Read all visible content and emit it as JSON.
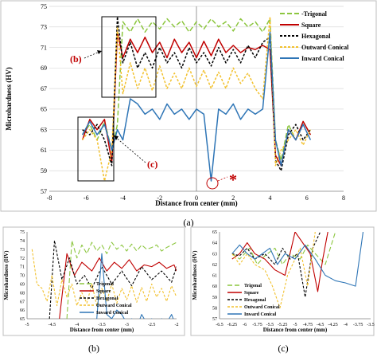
{
  "figure": {
    "panel_labels": [
      "(a)",
      "(b)",
      "(c)"
    ],
    "callouts": {
      "b": "(b)",
      "c": "(c)",
      "star": "*"
    }
  },
  "series_styles": [
    {
      "name": "Trigonal",
      "color": "#8cc63f",
      "dash": "long"
    },
    {
      "name": "Square",
      "color": "#c00000",
      "dash": "solid"
    },
    {
      "name": "Hexagonal",
      "color": "#000000",
      "dash": "short"
    },
    {
      "name": "Outward Conical",
      "color": "#f2c12e",
      "dash": "short"
    },
    {
      "name": "Inward Conical",
      "color": "#2e75b6",
      "dash": "solid"
    }
  ],
  "chart_data": [
    {
      "id": "a",
      "type": "line",
      "xlabel": "Distance from center (mm)",
      "ylabel": "Microhardness (HV)",
      "xlim": [
        -8,
        8
      ],
      "ylim": [
        57,
        75
      ],
      "xticks": [
        -8,
        -6,
        -4,
        -2,
        0,
        2,
        4,
        6,
        8
      ],
      "yticks": [
        57,
        59,
        61,
        63,
        65,
        67,
        69,
        71,
        73,
        75
      ],
      "grid": "horizontal",
      "legend": "top-right",
      "legend_labels": [
        "-Trigonal",
        "Square",
        "Hexagonal",
        "Outward Conical",
        "Inward Conical"
      ],
      "series": [
        {
          "name": "Trigonal",
          "x": [
            -6.2,
            -5.8,
            -5.4,
            -5.0,
            -4.6,
            -4.3,
            -4.0,
            -3.6,
            -3.2,
            -2.8,
            -2.4,
            -2.0,
            -1.6,
            -1.2,
            -0.8,
            -0.4,
            0.0,
            0.4,
            0.8,
            1.2,
            1.6,
            2.0,
            2.4,
            2.8,
            3.2,
            3.6,
            4.0,
            4.3,
            4.6,
            5.0,
            5.4,
            5.8,
            6.2
          ],
          "y": [
            62.5,
            63.5,
            62.0,
            63.8,
            61.0,
            63.5,
            73.5,
            72.5,
            73.8,
            72.5,
            73.5,
            72.8,
            73.8,
            73.0,
            73.6,
            72.5,
            73.5,
            72.8,
            73.8,
            73.0,
            73.5,
            72.6,
            73.8,
            73.0,
            73.5,
            72.5,
            73.8,
            62.0,
            60.0,
            63.5,
            62.0,
            63.8,
            62.5
          ]
        },
        {
          "name": "Square",
          "x": [
            -6.2,
            -5.8,
            -5.4,
            -5.0,
            -4.6,
            -4.3,
            -4.0,
            -3.6,
            -3.2,
            -2.8,
            -2.4,
            -2.0,
            -1.6,
            -1.2,
            -0.8,
            -0.4,
            0.0,
            0.4,
            0.8,
            1.2,
            1.6,
            2.0,
            2.4,
            2.8,
            3.2,
            3.6,
            4.0,
            4.3,
            4.6,
            5.0,
            5.4,
            5.8,
            6.2
          ],
          "y": [
            62.0,
            64.0,
            63.0,
            64.0,
            59.8,
            72.5,
            70.0,
            71.8,
            70.5,
            72.0,
            70.5,
            71.5,
            70.0,
            71.8,
            70.5,
            71.5,
            70.0,
            71.6,
            70.2,
            71.8,
            70.5,
            71.2,
            70.5,
            71.0,
            70.8,
            71.2,
            70.8,
            60.5,
            59.5,
            63.0,
            62.0,
            63.8,
            62.5
          ]
        },
        {
          "name": "Hexagonal",
          "x": [
            -6.2,
            -5.8,
            -5.4,
            -5.0,
            -4.6,
            -4.3,
            -4.0,
            -3.6,
            -3.2,
            -2.8,
            -2.4,
            -2.0,
            -1.6,
            -1.2,
            -0.8,
            -0.4,
            0.0,
            0.4,
            0.8,
            1.2,
            1.6,
            2.0,
            2.4,
            2.8,
            3.2,
            3.6,
            4.0,
            4.3,
            4.6,
            5.0,
            5.4,
            5.8,
            6.2
          ],
          "y": [
            63.0,
            62.5,
            63.5,
            62.0,
            59.5,
            74.0,
            69.5,
            71.5,
            69.0,
            70.5,
            69.0,
            71.0,
            69.5,
            70.5,
            69.0,
            71.0,
            69.5,
            70.5,
            69.2,
            71.0,
            69.5,
            70.8,
            69.5,
            71.2,
            70.0,
            71.5,
            72.0,
            60.0,
            59.0,
            62.5,
            63.5,
            62.0,
            63.0
          ]
        },
        {
          "name": "Outward Conical",
          "x": [
            -6.2,
            -5.8,
            -5.4,
            -5.0,
            -4.6,
            -4.3,
            -4.0,
            -3.6,
            -3.2,
            -2.8,
            -2.4,
            -2.0,
            -1.6,
            -1.2,
            -0.8,
            -0.4,
            0.0,
            0.4,
            0.8,
            1.2,
            1.6,
            2.0,
            2.4,
            2.8,
            3.2,
            3.6,
            4.0,
            4.3,
            4.6,
            5.0,
            5.4,
            5.8,
            6.2
          ],
          "y": [
            62.0,
            63.0,
            62.0,
            58.0,
            61.0,
            73.0,
            66.5,
            69.5,
            67.0,
            69.0,
            66.8,
            69.2,
            67.0,
            68.5,
            67.0,
            69.0,
            67.2,
            68.8,
            67.0,
            68.6,
            67.0,
            69.0,
            67.5,
            68.5,
            67.0,
            66.0,
            74.0,
            59.5,
            61.0,
            62.0,
            63.0,
            61.5,
            63.0
          ]
        },
        {
          "name": "Inward Conical",
          "x": [
            -6.2,
            -5.8,
            -5.4,
            -5.0,
            -4.6,
            -4.3,
            -4.0,
            -3.6,
            -3.2,
            -2.8,
            -2.4,
            -2.0,
            -1.6,
            -1.2,
            -0.8,
            -0.4,
            0.0,
            0.4,
            0.8,
            1.2,
            1.6,
            2.0,
            2.4,
            2.8,
            3.2,
            3.6,
            4.0,
            4.3,
            4.6,
            5.0,
            5.4,
            5.8,
            6.2
          ],
          "y": [
            62.5,
            63.8,
            62.5,
            63.5,
            61.0,
            63.0,
            62.0,
            66.0,
            65.5,
            64.5,
            65.0,
            64.0,
            65.5,
            64.5,
            65.0,
            64.0,
            65.0,
            64.5,
            58.0,
            65.0,
            64.5,
            65.5,
            64.0,
            65.0,
            64.5,
            65.0,
            72.5,
            62.0,
            59.5,
            63.0,
            62.0,
            63.5,
            62.0
          ]
        }
      ]
    },
    {
      "id": "b",
      "type": "line",
      "xlabel": "Distance from center (mm)",
      "ylabel": "Microhardness (HV)",
      "xlim": [
        -5,
        -2
      ],
      "ylim": [
        65,
        75
      ],
      "xticks": [
        -5,
        -4.5,
        -4,
        -3.5,
        -3,
        -2.5,
        -2
      ],
      "yticks": [
        65,
        66,
        67,
        68,
        69,
        70,
        71,
        72,
        73,
        74,
        75
      ],
      "grid": "none",
      "legend": "bottom-center",
      "legend_labels": [
        "Trigonal",
        "Square",
        "Hexagonal",
        "Outward Conical",
        "Inward Conical"
      ],
      "series": [
        {
          "name": "Trigonal",
          "x": [
            -4.2,
            -4.1,
            -4.0,
            -3.9,
            -3.8,
            -3.7,
            -3.6,
            -3.5,
            -3.4,
            -3.3,
            -3.2,
            -3.1,
            -3.0,
            -2.9,
            -2.8,
            -2.7,
            -2.6,
            -2.5,
            -2.4,
            -2.3,
            -2.2,
            -2.1,
            -2.0
          ],
          "y": [
            65.0,
            74.0,
            72.0,
            73.5,
            72.5,
            73.8,
            72.8,
            73.5,
            72.5,
            73.8,
            73.0,
            73.5,
            72.8,
            73.6,
            72.8,
            73.5,
            73.0,
            73.2,
            73.5,
            72.8,
            73.2,
            73.5,
            73.8
          ]
        },
        {
          "name": "Square",
          "x": [
            -4.35,
            -4.2,
            -4.05,
            -3.9,
            -3.7,
            -3.55,
            -3.4,
            -3.25,
            -3.1,
            -2.95,
            -2.8,
            -2.65,
            -2.5,
            -2.35,
            -2.2,
            -2.05,
            -2.0
          ],
          "y": [
            65.0,
            72.5,
            70.0,
            71.5,
            70.5,
            72.0,
            70.5,
            71.5,
            70.8,
            71.8,
            70.5,
            71.2,
            71.0,
            71.5,
            70.8,
            71.2,
            70.5
          ]
        },
        {
          "name": "Hexagonal",
          "x": [
            -4.55,
            -4.45,
            -4.3,
            -4.15,
            -4.0,
            -3.85,
            -3.7,
            -3.5,
            -3.3,
            -3.1,
            -2.9,
            -2.7,
            -2.5,
            -2.3,
            -2.1,
            -2.0
          ],
          "y": [
            65.0,
            74.0,
            69.5,
            72.0,
            69.0,
            70.0,
            68.5,
            71.0,
            69.0,
            70.5,
            68.8,
            71.0,
            69.5,
            70.5,
            69.2,
            71.0
          ]
        },
        {
          "name": "Outward Conical",
          "x": [
            -4.9,
            -4.8,
            -4.7,
            -4.6,
            -4.5,
            -4.4,
            -4.3,
            -4.2,
            -4.1,
            -4.0,
            -3.9,
            -3.8,
            -3.7,
            -3.6,
            -3.5,
            -3.4,
            -3.3,
            -3.2,
            -3.1,
            -3.0,
            -2.9,
            -2.8,
            -2.7,
            -2.6,
            -2.5,
            -2.4,
            -2.3,
            -2.2,
            -2.1,
            -2.0
          ],
          "y": [
            73.0,
            69.0,
            68.5,
            67.0,
            70.0,
            66.5,
            69.5,
            67.5,
            69.0,
            66.5,
            68.0,
            66.8,
            69.0,
            66.5,
            68.5,
            67.0,
            69.0,
            66.8,
            68.5,
            67.2,
            68.8,
            66.9,
            68.6,
            67.0,
            69.0,
            67.5,
            68.5,
            67.0,
            68.8,
            67.5
          ]
        },
        {
          "name": "Inward Conical",
          "x": [
            -3.6,
            -3.5,
            -3.4,
            -3.3,
            -3.2,
            -3.1,
            -3.0,
            -2.9,
            -2.8,
            -2.7,
            -2.6,
            -2.5,
            -2.4,
            -2.3,
            -2.2,
            -2.1,
            -2.0
          ],
          "y": [
            65.0,
            72.5,
            65.5,
            65.0,
            66.0,
            65.5,
            64.5,
            65.0,
            64.0,
            65.5,
            64.5,
            65.0,
            64.0,
            65.0,
            64.5,
            65.5,
            64.0
          ]
        }
      ]
    },
    {
      "id": "c",
      "type": "line",
      "xlabel": "Distance from center (mm)",
      "ylabel": "Microhardness (HV)",
      "xlim": [
        -6.5,
        -3.5
      ],
      "ylim": [
        57,
        65
      ],
      "xticks": [
        -6.5,
        -6.25,
        -6,
        -5.75,
        -5.5,
        -5.25,
        -5,
        -4.75,
        -4.5,
        -4.25,
        -4,
        -3.75,
        -3.5
      ],
      "yticks": [
        57,
        58,
        59,
        60,
        61,
        62,
        63,
        64,
        65
      ],
      "grid": "none",
      "legend": "bottom-left",
      "legend_labels": [
        "Trigonal",
        "Square",
        "Hexagonal",
        "Outward Conical",
        "Inward Conical"
      ],
      "series": [
        {
          "name": "Trigonal",
          "x": [
            -6.25,
            -6.1,
            -5.9,
            -5.75,
            -5.6,
            -5.4,
            -5.25,
            -5.1,
            -4.9,
            -4.75,
            -4.6,
            -4.4,
            -4.3,
            -4.2
          ],
          "y": [
            63.0,
            62.5,
            63.5,
            62.0,
            62.8,
            63.5,
            62.0,
            63.0,
            62.5,
            63.8,
            63.0,
            62.0,
            63.5,
            65.0
          ]
        },
        {
          "name": "Square",
          "x": [
            -6.25,
            -6.1,
            -5.95,
            -5.8,
            -5.6,
            -5.4,
            -5.2,
            -5.0,
            -4.85,
            -4.7,
            -4.55,
            -4.45,
            -4.35
          ],
          "y": [
            62.5,
            63.0,
            64.0,
            63.0,
            62.5,
            61.5,
            61.0,
            65.0,
            64.0,
            63.0,
            59.5,
            62.5,
            65.0
          ]
        },
        {
          "name": "Hexagonal",
          "x": [
            -6.25,
            -6.1,
            -5.95,
            -5.8,
            -5.6,
            -5.4,
            -5.25,
            -5.1,
            -4.95,
            -4.8,
            -4.65,
            -4.5
          ],
          "y": [
            63.0,
            62.8,
            63.5,
            62.5,
            63.0,
            62.0,
            63.5,
            62.5,
            63.0,
            59.0,
            63.5,
            65.0
          ]
        },
        {
          "name": "Outward Conical",
          "x": [
            -6.25,
            -6.1,
            -5.95,
            -5.8,
            -5.6,
            -5.45,
            -5.3,
            -5.15,
            -5.0,
            -4.9,
            -4.75,
            -4.6
          ],
          "y": [
            63.0,
            62.0,
            63.0,
            62.0,
            61.5,
            60.0,
            58.0,
            61.0,
            62.5,
            63.5,
            60.0,
            65.0
          ]
        },
        {
          "name": "Inward Conical",
          "x": [
            -6.25,
            -6.1,
            -5.95,
            -5.8,
            -5.65,
            -5.5,
            -5.35,
            -5.2,
            -5.0,
            -4.8,
            -4.6,
            -4.4,
            -4.2,
            -4.0,
            -3.8,
            -3.65
          ],
          "y": [
            63.0,
            63.8,
            63.0,
            62.5,
            63.0,
            63.5,
            62.0,
            63.0,
            62.5,
            63.8,
            62.5,
            61.0,
            60.5,
            60.3,
            60.0,
            65.0
          ]
        }
      ]
    }
  ]
}
